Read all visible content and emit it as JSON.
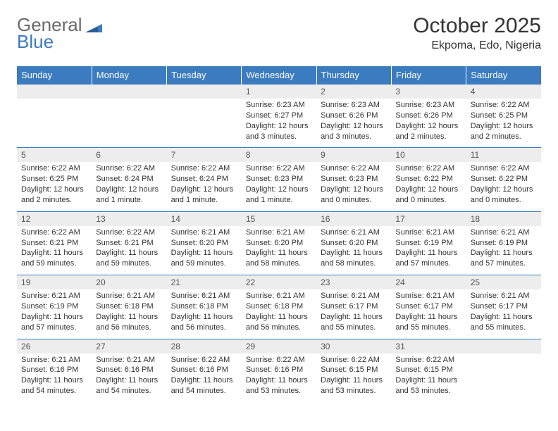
{
  "brand": {
    "part1": "General",
    "part2": "Blue"
  },
  "title": "October 2025",
  "location": "Ekpoma, Edo, Nigeria",
  "colors": {
    "header_bg": "#3b7bbf",
    "date_bg": "#ededed",
    "text": "#333333"
  },
  "day_headers": [
    "Sunday",
    "Monday",
    "Tuesday",
    "Wednesday",
    "Thursday",
    "Friday",
    "Saturday"
  ],
  "weeks": [
    {
      "dates": [
        "",
        "",
        "",
        "1",
        "2",
        "3",
        "4"
      ],
      "info": [
        "",
        "",
        "",
        "Sunrise: 6:23 AM\nSunset: 6:27 PM\nDaylight: 12 hours and 3 minutes.",
        "Sunrise: 6:23 AM\nSunset: 6:26 PM\nDaylight: 12 hours and 3 minutes.",
        "Sunrise: 6:23 AM\nSunset: 6:26 PM\nDaylight: 12 hours and 2 minutes.",
        "Sunrise: 6:22 AM\nSunset: 6:25 PM\nDaylight: 12 hours and 2 minutes."
      ]
    },
    {
      "dates": [
        "5",
        "6",
        "7",
        "8",
        "9",
        "10",
        "11"
      ],
      "info": [
        "Sunrise: 6:22 AM\nSunset: 6:25 PM\nDaylight: 12 hours and 2 minutes.",
        "Sunrise: 6:22 AM\nSunset: 6:24 PM\nDaylight: 12 hours and 1 minute.",
        "Sunrise: 6:22 AM\nSunset: 6:24 PM\nDaylight: 12 hours and 1 minute.",
        "Sunrise: 6:22 AM\nSunset: 6:23 PM\nDaylight: 12 hours and 1 minute.",
        "Sunrise: 6:22 AM\nSunset: 6:23 PM\nDaylight: 12 hours and 0 minutes.",
        "Sunrise: 6:22 AM\nSunset: 6:22 PM\nDaylight: 12 hours and 0 minutes.",
        "Sunrise: 6:22 AM\nSunset: 6:22 PM\nDaylight: 12 hours and 0 minutes."
      ]
    },
    {
      "dates": [
        "12",
        "13",
        "14",
        "15",
        "16",
        "17",
        "18"
      ],
      "info": [
        "Sunrise: 6:22 AM\nSunset: 6:21 PM\nDaylight: 11 hours and 59 minutes.",
        "Sunrise: 6:22 AM\nSunset: 6:21 PM\nDaylight: 11 hours and 59 minutes.",
        "Sunrise: 6:21 AM\nSunset: 6:20 PM\nDaylight: 11 hours and 59 minutes.",
        "Sunrise: 6:21 AM\nSunset: 6:20 PM\nDaylight: 11 hours and 58 minutes.",
        "Sunrise: 6:21 AM\nSunset: 6:20 PM\nDaylight: 11 hours and 58 minutes.",
        "Sunrise: 6:21 AM\nSunset: 6:19 PM\nDaylight: 11 hours and 57 minutes.",
        "Sunrise: 6:21 AM\nSunset: 6:19 PM\nDaylight: 11 hours and 57 minutes."
      ]
    },
    {
      "dates": [
        "19",
        "20",
        "21",
        "22",
        "23",
        "24",
        "25"
      ],
      "info": [
        "Sunrise: 6:21 AM\nSunset: 6:19 PM\nDaylight: 11 hours and 57 minutes.",
        "Sunrise: 6:21 AM\nSunset: 6:18 PM\nDaylight: 11 hours and 56 minutes.",
        "Sunrise: 6:21 AM\nSunset: 6:18 PM\nDaylight: 11 hours and 56 minutes.",
        "Sunrise: 6:21 AM\nSunset: 6:18 PM\nDaylight: 11 hours and 56 minutes.",
        "Sunrise: 6:21 AM\nSunset: 6:17 PM\nDaylight: 11 hours and 55 minutes.",
        "Sunrise: 6:21 AM\nSunset: 6:17 PM\nDaylight: 11 hours and 55 minutes.",
        "Sunrise: 6:21 AM\nSunset: 6:17 PM\nDaylight: 11 hours and 55 minutes."
      ]
    },
    {
      "dates": [
        "26",
        "27",
        "28",
        "29",
        "30",
        "31",
        ""
      ],
      "info": [
        "Sunrise: 6:21 AM\nSunset: 6:16 PM\nDaylight: 11 hours and 54 minutes.",
        "Sunrise: 6:21 AM\nSunset: 6:16 PM\nDaylight: 11 hours and 54 minutes.",
        "Sunrise: 6:22 AM\nSunset: 6:16 PM\nDaylight: 11 hours and 54 minutes.",
        "Sunrise: 6:22 AM\nSunset: 6:16 PM\nDaylight: 11 hours and 53 minutes.",
        "Sunrise: 6:22 AM\nSunset: 6:15 PM\nDaylight: 11 hours and 53 minutes.",
        "Sunrise: 6:22 AM\nSunset: 6:15 PM\nDaylight: 11 hours and 53 minutes.",
        ""
      ]
    }
  ]
}
